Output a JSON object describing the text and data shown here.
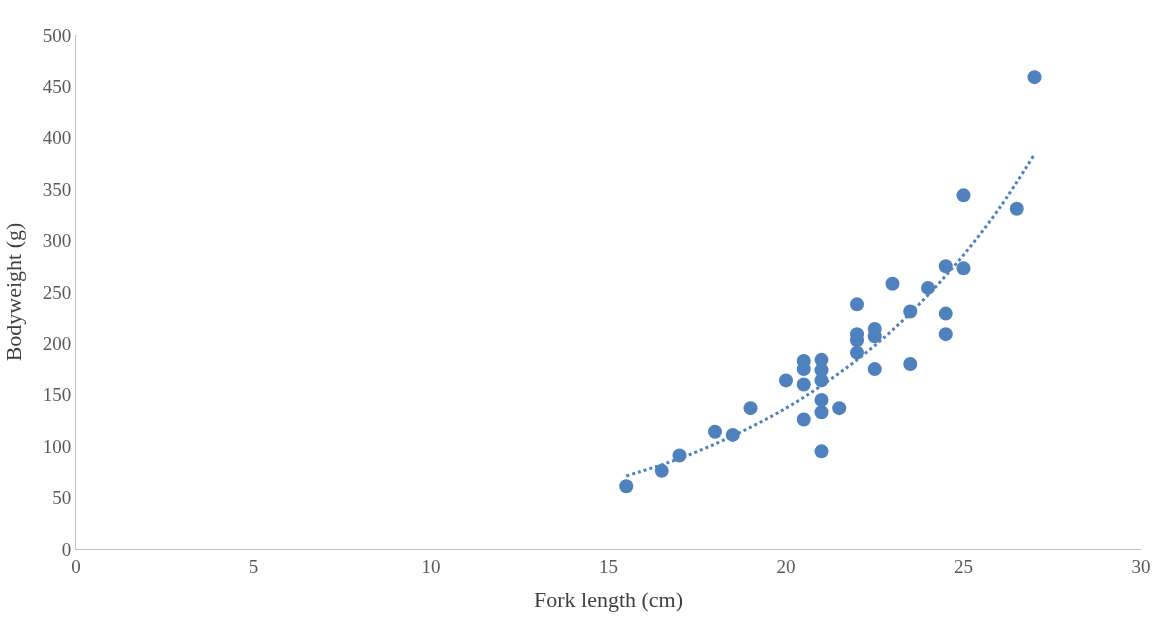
{
  "chart_data": {
    "type": "scatter",
    "xlabel": "Fork length (cm)",
    "ylabel": "Bodyweight (g)",
    "xlim": [
      0,
      30
    ],
    "xticks": [
      0,
      5,
      10,
      15,
      20,
      25,
      30
    ],
    "ylim": [
      0,
      500
    ],
    "yticks": [
      0,
      50,
      100,
      150,
      200,
      250,
      300,
      350,
      400,
      450,
      500
    ],
    "marker": "circle",
    "series": [
      {
        "color": "#4e81bd",
        "x": [
          15.5,
          16.5,
          17,
          18,
          18.5,
          19,
          20,
          20.5,
          20.5,
          20.5,
          20.5,
          21,
          21,
          21,
          21,
          21,
          21,
          21.5,
          22,
          22,
          22,
          22,
          22.5,
          22.5,
          22.5,
          23,
          23.5,
          23.5,
          24,
          24.5,
          24.5,
          24.5,
          25,
          25,
          26.5,
          27
        ],
        "values": [
          61,
          76,
          91,
          114,
          111,
          137,
          164,
          183,
          175,
          160,
          126,
          184,
          174,
          164,
          145,
          133,
          95,
          137,
          238,
          209,
          203,
          191,
          214,
          207,
          175,
          258,
          231,
          180,
          254,
          275,
          229,
          209,
          344,
          273,
          331,
          459
        ]
      },
      {
        "type": "line",
        "color": "#4e81bd",
        "line_style": "dotted",
        "marker": "none",
        "x": [
          15.5,
          17,
          18.5,
          20,
          21,
          22,
          23,
          24,
          25,
          26,
          27
        ],
        "values": [
          71,
          88,
          110,
          137,
          159,
          184,
          213,
          247,
          286,
          331,
          384
        ]
      }
    ]
  }
}
